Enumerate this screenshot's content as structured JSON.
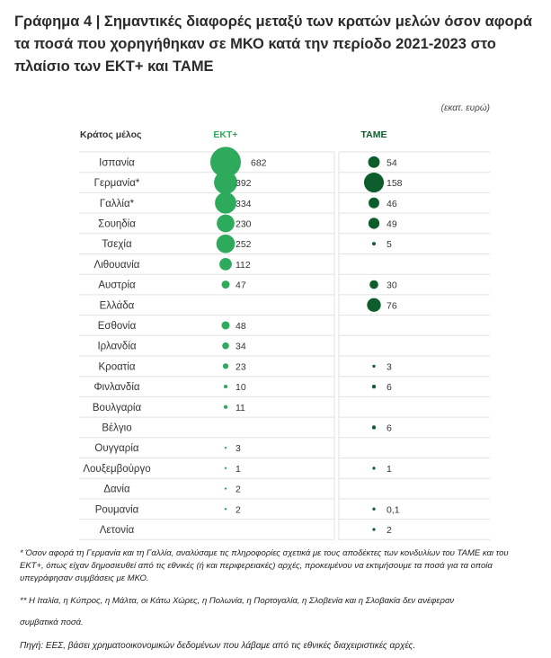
{
  "title": "Γράφημα 4 | Σημαντικές διαφορές μεταξύ των κρατών μελών όσον αφορά τα ποσά που χορηγήθηκαν σε ΜΚΟ κατά την περίοδο 2021-2023 στο πλαίσιο των ΕΚΤ+ και ΤΑΜΕ",
  "unit": "(εκατ. ευρώ)",
  "footnote1": "* Όσον αφορά τη Γερμανία και τη Γαλλία, αναλύσαμε τις πληροφορίες σχετικά με τους αποδέκτες των κονδυλίων του ΤΑΜΕ και του ΕΚΤ+, όπως είχαν δημοσιευθεί από τις εθνικές (ή και περιφερειακές) αρχές, προκειμένου να εκτιμήσουμε τα ποσά για τα οποία υπεγράφησαν συμβάσεις με ΜΚΟ.",
  "footnote2": "** Η Ιταλία, η Κύπρος, η Μάλτα, οι Κάτω Χώρες, η Πολωνία, η Πορτογαλία, η Σλοβενία και η Σλοβακία δεν ανέφεραν",
  "footnote3": "συμβατικά ποσά.",
  "source": "Πηγή: ΕΕΣ, βάσει χρηματοοικονομικών δεδομένων που λάβαμε από τις εθνικές διαχειριστικές αρχές.",
  "chart_data": {
    "type": "bubble-table",
    "column_headers": [
      "Κράτος μέλος",
      "ΕΚΤ+",
      "ΤΑΜΕ"
    ],
    "categories": [
      "Ισπανία",
      "Γερμανία*",
      "Γαλλία*",
      "Σουηδία",
      "Τσεχία",
      "Λιθουανία",
      "Αυστρία",
      "Ελλάδα",
      "Εσθονία",
      "Ιρλανδία",
      "Κροατία",
      "Φινλανδία",
      "Βουλγαρία",
      "Βέλγιο",
      "Ουγγαρία",
      "Λουξεμβούργο",
      "Δανία",
      "Ρουμανία",
      "Λετονία"
    ],
    "series": [
      {
        "name": "ΕΚΤ+",
        "color": "#2eaa5c",
        "values": [
          682,
          392,
          334,
          230,
          252,
          112,
          47,
          null,
          48,
          34,
          23,
          10,
          11,
          null,
          3,
          1,
          2,
          2,
          null
        ],
        "labels": [
          "682",
          "392",
          "334",
          "230",
          "252",
          "112",
          "47",
          "",
          "48",
          "34",
          "23",
          "10",
          "11",
          "",
          "3",
          "1",
          "2",
          "2",
          ""
        ]
      },
      {
        "name": "ΤΑΜΕ",
        "color": "#0d5c2c",
        "values": [
          54,
          158,
          46,
          49,
          5,
          null,
          30,
          76,
          null,
          null,
          3,
          6,
          null,
          6,
          null,
          1,
          null,
          0.1,
          2
        ],
        "labels": [
          "54",
          "158",
          "46",
          "49",
          "5",
          "",
          "30",
          "76",
          "",
          "",
          "3",
          "6",
          "",
          "6",
          "",
          "1",
          "",
          "0,1",
          "2"
        ]
      }
    ]
  }
}
